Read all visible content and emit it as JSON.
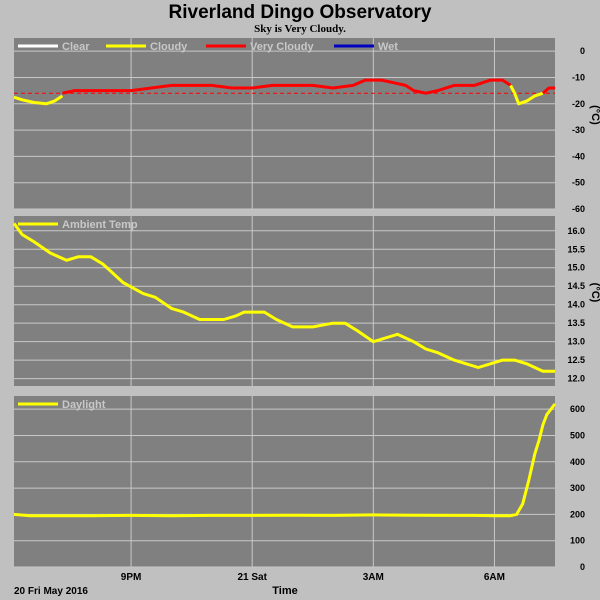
{
  "title": "Riverland Dingo Observatory",
  "subtitle": "Sky is Very Cloudy.",
  "x_axis": {
    "label": "Time",
    "date_label": "20 Fri May 2016",
    "range_hours": [
      18.1,
      31.5
    ],
    "ticks": [
      {
        "label": "9PM",
        "hour": 21
      },
      {
        "label": "21 Sat",
        "hour": 24
      },
      {
        "label": "3AM",
        "hour": 27
      },
      {
        "label": "6AM",
        "hour": 30
      }
    ]
  },
  "colors": {
    "background": "#c0c0c0",
    "plot": "#808080",
    "grid": "#c8c8c8",
    "yellow": "#ffff00",
    "red": "#ff0000",
    "blue": "#0000c0",
    "white": "#ffffff",
    "dashed": "#ff0000",
    "text": "#000000",
    "legend_text": "#c8c8c8"
  },
  "chart_data": [
    {
      "type": "line",
      "id": "sky",
      "unit": "(°C)",
      "ylim": [
        -60,
        5
      ],
      "yticks": [
        0,
        -10,
        -20,
        -30,
        -40,
        -50,
        -60
      ],
      "grid": true,
      "legend_position": "top-left",
      "legend": [
        {
          "name": "Clear",
          "color": "#ffffff"
        },
        {
          "name": "Cloudy",
          "color": "#ffff00"
        },
        {
          "name": "Very Cloudy",
          "color": "#ff0000"
        },
        {
          "name": "Wet",
          "color": "#0000c0"
        }
      ],
      "threshold": -16,
      "series": [
        {
          "legend_name": "Cloudy",
          "color": "#ffff00",
          "x": [
            18.1,
            18.3,
            18.6,
            18.9,
            19.1,
            19.3
          ],
          "y": [
            -17.5,
            -18.5,
            -19.5,
            -20,
            -19,
            -17
          ]
        },
        {
          "legend_name": "Very Cloudy",
          "color": "#ff0000",
          "x": [
            19.3,
            19.6,
            20.0,
            20.5,
            21.0,
            21.5,
            22.0,
            22.5,
            23.0,
            23.5,
            24.0,
            24.5,
            25.0,
            25.5,
            26.0,
            26.5,
            26.8,
            27.2,
            27.5,
            27.8,
            28.0,
            28.3,
            28.6,
            29.0,
            29.5,
            29.9,
            30.2,
            30.4
          ],
          "y": [
            -16,
            -15,
            -15,
            -15,
            -15,
            -14,
            -13,
            -13,
            -13,
            -14,
            -14,
            -13,
            -13,
            -13,
            -14,
            -13,
            -11,
            -11,
            -12,
            -13,
            -15,
            -16,
            -15,
            -13,
            -13,
            -11,
            -11,
            -13
          ]
        },
        {
          "legend_name": "Cloudy",
          "color": "#ffff00",
          "x": [
            30.4,
            30.5,
            30.6,
            30.8,
            31.0,
            31.2
          ],
          "y": [
            -13,
            -16,
            -20,
            -19,
            -17,
            -16
          ]
        },
        {
          "legend_name": "Very Cloudy",
          "color": "#ff0000",
          "x": [
            31.2,
            31.35,
            31.5
          ],
          "y": [
            -16,
            -14,
            -14
          ]
        }
      ]
    },
    {
      "type": "line",
      "id": "ambient",
      "unit": "(°C)",
      "ylim": [
        11.8,
        16.4
      ],
      "yticks": [
        16.0,
        15.5,
        15.0,
        14.5,
        14.0,
        13.5,
        13.0,
        12.5,
        12.0
      ],
      "grid": true,
      "legend_position": "top-left",
      "series": [
        {
          "name": "Ambient Temp",
          "color": "#ffff00",
          "x": [
            18.1,
            18.3,
            18.6,
            19.0,
            19.4,
            19.7,
            20.0,
            20.3,
            20.5,
            20.8,
            21.3,
            21.6,
            22.0,
            22.3,
            22.7,
            23.0,
            23.3,
            23.6,
            23.8,
            24.3,
            24.6,
            25.0,
            25.5,
            26.0,
            26.3,
            26.6,
            27.0,
            27.3,
            27.6,
            28.0,
            28.3,
            28.6,
            29.0,
            29.3,
            29.6,
            29.9,
            30.2,
            30.5,
            30.8,
            31.2,
            31.5
          ],
          "y": [
            16.2,
            15.9,
            15.7,
            15.4,
            15.2,
            15.3,
            15.3,
            15.1,
            14.9,
            14.6,
            14.3,
            14.2,
            13.9,
            13.8,
            13.6,
            13.6,
            13.6,
            13.7,
            13.8,
            13.8,
            13.6,
            13.4,
            13.4,
            13.5,
            13.5,
            13.3,
            13.0,
            13.1,
            13.2,
            13.0,
            12.8,
            12.7,
            12.5,
            12.4,
            12.3,
            12.4,
            12.5,
            12.5,
            12.4,
            12.2,
            12.2
          ]
        }
      ]
    },
    {
      "type": "line",
      "id": "daylight",
      "unit": "",
      "ylim": [
        0,
        650
      ],
      "yticks": [
        600,
        500,
        400,
        300,
        200,
        100,
        0
      ],
      "grid": true,
      "legend_position": "top-left",
      "series": [
        {
          "name": "Daylight",
          "color": "#ffff00",
          "x": [
            18.1,
            18.5,
            19.0,
            20.0,
            21.0,
            22.0,
            23.0,
            24.0,
            25.0,
            26.0,
            27.0,
            28.0,
            29.0,
            29.5,
            30.0,
            30.4,
            30.55,
            30.7,
            30.85,
            31.0,
            31.1,
            31.2,
            31.3,
            31.4,
            31.5
          ],
          "y": [
            200,
            195,
            195,
            195,
            196,
            195,
            196,
            196,
            197,
            196,
            198,
            197,
            196,
            196,
            195,
            195,
            200,
            240,
            330,
            430,
            480,
            540,
            580,
            600,
            620
          ]
        }
      ]
    }
  ]
}
